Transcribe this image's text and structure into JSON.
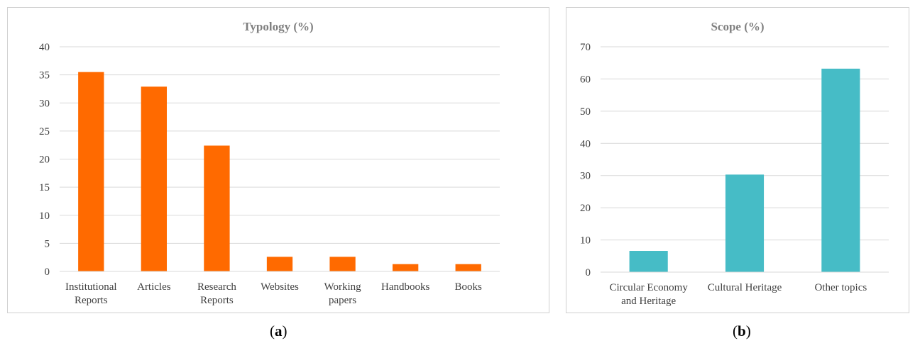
{
  "chart_data": [
    {
      "type": "bar",
      "title": "Typology (%)",
      "categories": [
        [
          "Institutional",
          "Reports"
        ],
        [
          "Articles"
        ],
        [
          "Research",
          "Reports"
        ],
        [
          "Websites"
        ],
        [
          "Working",
          "papers"
        ],
        [
          "Handbooks"
        ],
        [
          "Books"
        ]
      ],
      "values": [
        35.5,
        32.9,
        22.4,
        2.6,
        2.6,
        1.3,
        1.3
      ],
      "ylim": [
        0,
        40
      ],
      "yticks": [
        0,
        5,
        10,
        15,
        20,
        25,
        30,
        35,
        40
      ],
      "grid": true,
      "bar_color": "#ff6a00",
      "caption": "(a)"
    },
    {
      "type": "bar",
      "title": "Scope (%)",
      "categories": [
        [
          "Circular Economy",
          "and Heritage"
        ],
        [
          "Cultural Heritage"
        ],
        [
          "Other topics"
        ]
      ],
      "values": [
        6.6,
        30.3,
        63.2
      ],
      "ylim": [
        0,
        70
      ],
      "yticks": [
        0,
        10,
        20,
        30,
        40,
        50,
        60,
        70
      ],
      "grid": true,
      "bar_color": "#46bcc6",
      "caption": "(b)"
    }
  ]
}
